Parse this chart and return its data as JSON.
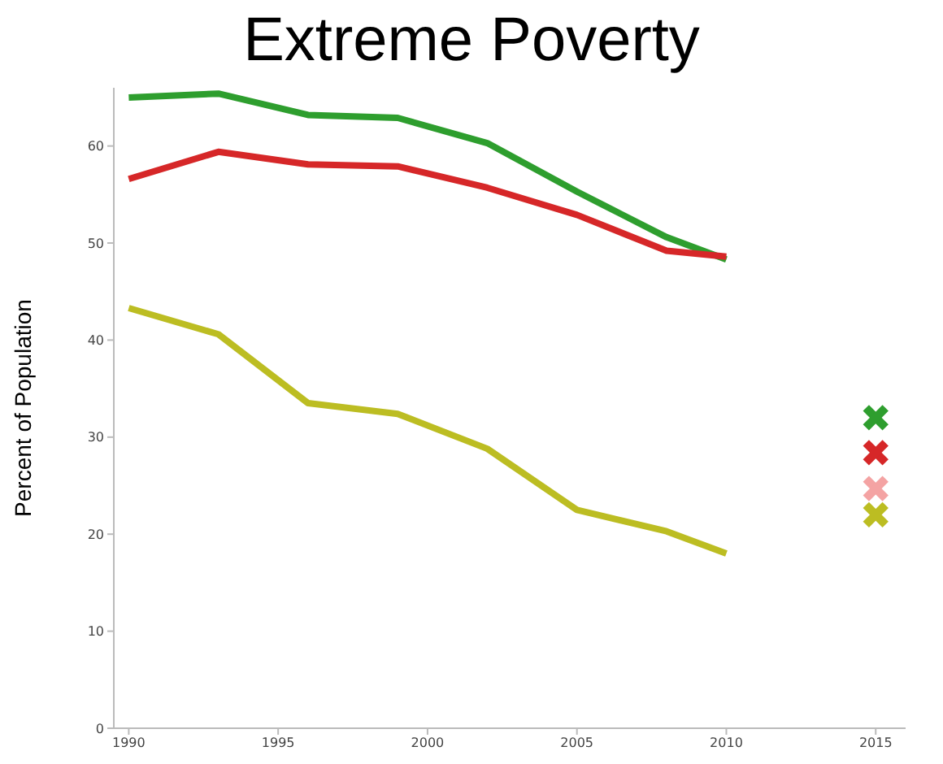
{
  "chart_data": {
    "type": "line",
    "title": "Extreme Poverty",
    "ylabel": "Percent of Population",
    "xlim": [
      1989.5,
      2016
    ],
    "xticks": [
      1990,
      1995,
      2000,
      2005,
      2010,
      2015
    ],
    "ylim": [
      0,
      66
    ],
    "yticks": [
      0,
      10,
      20,
      30,
      40,
      50,
      60
    ],
    "marker": "none",
    "line_style": "solid",
    "series": [
      {
        "color": "#2e9e2e",
        "x": [
          1990,
          1993,
          1996,
          1999,
          2002,
          2005,
          2008,
          2010
        ],
        "values": [
          65.0,
          65.4,
          63.2,
          62.9,
          60.3,
          55.3,
          50.6,
          48.3
        ]
      },
      {
        "color": "#d62728",
        "x": [
          1990,
          1993,
          1996,
          1999,
          2002,
          2005,
          2008,
          2010
        ],
        "values": [
          56.6,
          59.4,
          58.1,
          57.9,
          55.7,
          52.9,
          49.2,
          48.6
        ]
      },
      {
        "color": "#bcbd22",
        "x": [
          1990,
          1993,
          1996,
          1999,
          2002,
          2005,
          2008,
          2010
        ],
        "values": [
          43.3,
          40.6,
          33.5,
          32.4,
          28.8,
          22.5,
          20.3,
          18.0
        ]
      },
      {
        "type": "scatter",
        "marker": "cross",
        "x": [
          2015,
          2015,
          2015,
          2015
        ],
        "values": [
          32.0,
          28.4,
          24.7,
          22.0
        ],
        "colors": [
          "#2e9e2e",
          "#d62728",
          "#f4a3a3",
          "#bcbd22"
        ]
      }
    ]
  }
}
